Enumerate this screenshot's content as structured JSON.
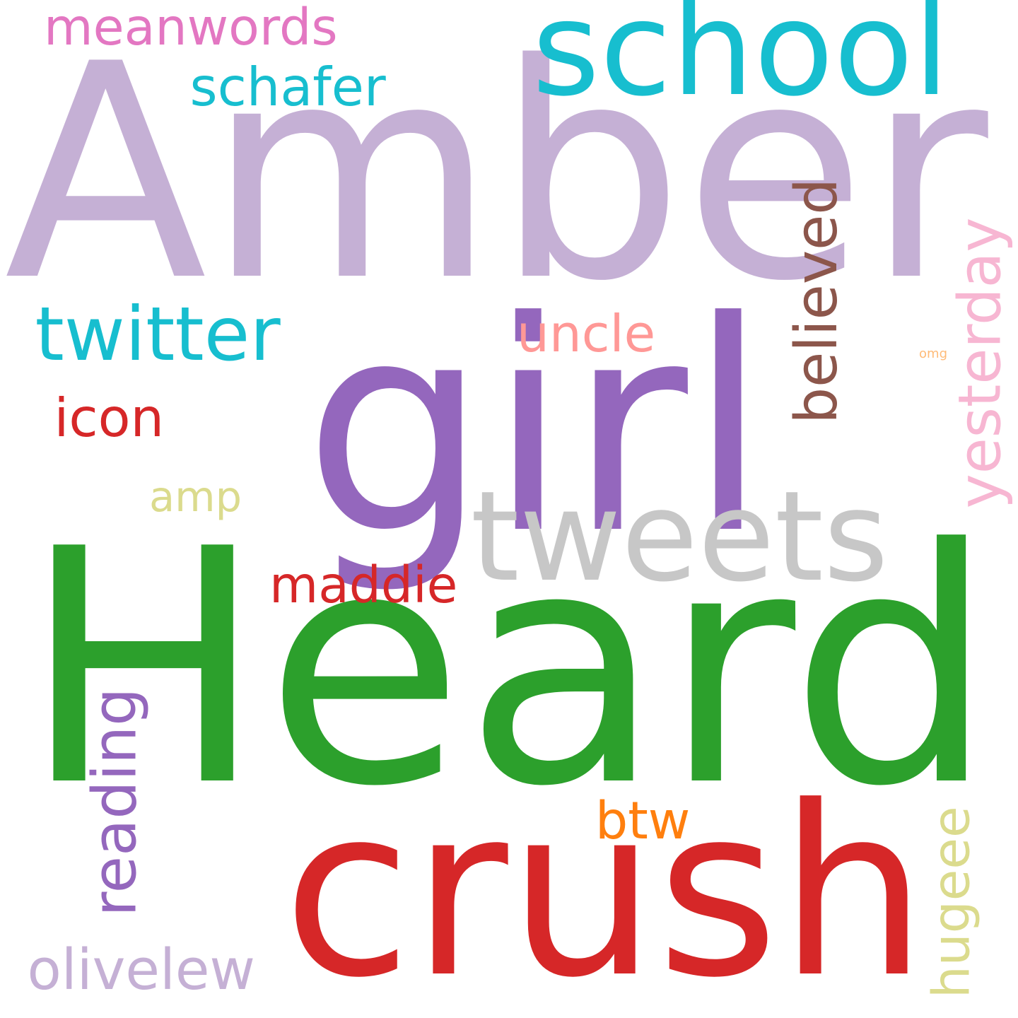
{
  "words": [
    {
      "text": "Amber",
      "color": "#c5b0d5"
    },
    {
      "text": "Heard",
      "color": "#2ca02c"
    },
    {
      "text": "girl",
      "color": "#9467bd"
    },
    {
      "text": "crush",
      "color": "#d62728"
    },
    {
      "text": "school",
      "color": "#17becf"
    },
    {
      "text": "tweets",
      "color": "#c7c7c7"
    },
    {
      "text": "twitter",
      "color": "#17becf"
    },
    {
      "text": "meanwords",
      "color": "#e377c2"
    },
    {
      "text": "schafer",
      "color": "#17becf"
    },
    {
      "text": "uncle",
      "color": "#ff9896"
    },
    {
      "text": "believed",
      "color": "#8c564b"
    },
    {
      "text": "omg",
      "color": "#ffbb78"
    },
    {
      "text": "yesterday",
      "color": "#f7b6d2"
    },
    {
      "text": "icon",
      "color": "#d62728"
    },
    {
      "text": "amp",
      "color": "#dbdb8d"
    },
    {
      "text": "maddie",
      "color": "#d62728"
    },
    {
      "text": "reading",
      "color": "#9467bd"
    },
    {
      "text": "btw",
      "color": "#ff7f0e"
    },
    {
      "text": "hugeee",
      "color": "#dbdb8d"
    },
    {
      "text": "olivelew",
      "color": "#c5b0d5"
    }
  ]
}
